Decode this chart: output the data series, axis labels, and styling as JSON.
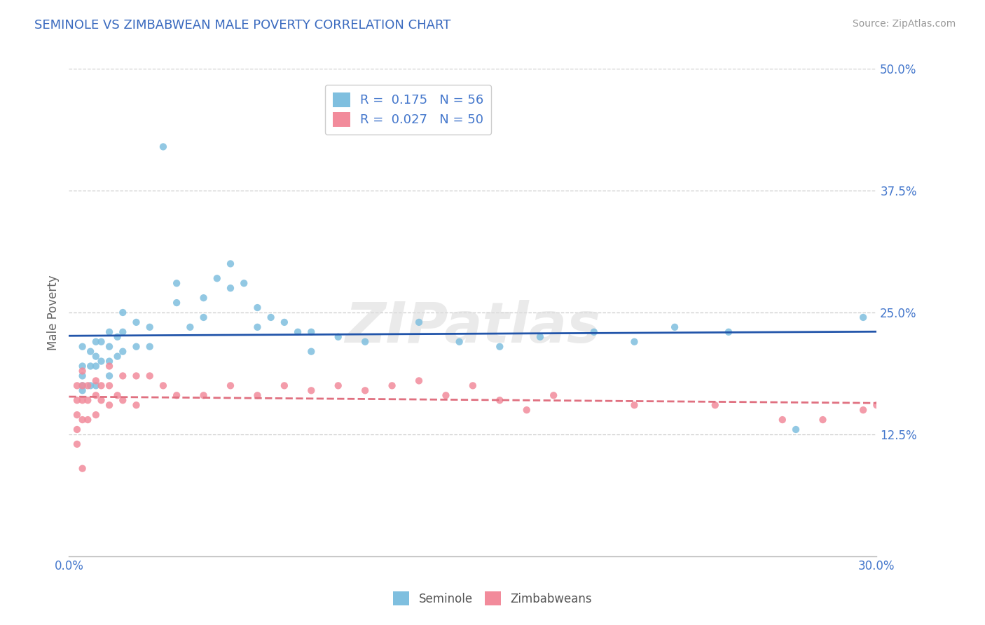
{
  "title": "SEMINOLE VS ZIMBABWEAN MALE POVERTY CORRELATION CHART",
  "source": "Source: ZipAtlas.com",
  "xlim": [
    0.0,
    0.3
  ],
  "ylim": [
    0.0,
    0.5
  ],
  "ytick_positions": [
    0.125,
    0.25,
    0.375,
    0.5
  ],
  "xtick_positions": [
    0.0,
    0.3
  ],
  "watermark": "ZIPatlas",
  "legend_entry_1": "R =  0.175   N = 56",
  "legend_entry_2": "R =  0.027   N = 50",
  "seminole_color": "#7fbfdf",
  "zimbabwe_color": "#f28b9b",
  "trend_seminole_color": "#2255aa",
  "trend_zimbabwe_color": "#e07080",
  "background_color": "#ffffff",
  "grid_color": "#cccccc",
  "title_color": "#3a6abf",
  "axis_tick_color": "#4477cc",
  "ylabel": "Male Poverty",
  "seminole_label": "Seminole",
  "zimbabwe_label": "Zimbabweans",
  "seminole_scatter_x": [
    0.005,
    0.005,
    0.005,
    0.005,
    0.005,
    0.008,
    0.008,
    0.008,
    0.01,
    0.01,
    0.01,
    0.01,
    0.012,
    0.012,
    0.015,
    0.015,
    0.015,
    0.015,
    0.018,
    0.018,
    0.02,
    0.02,
    0.02,
    0.025,
    0.025,
    0.03,
    0.03,
    0.035,
    0.04,
    0.04,
    0.045,
    0.05,
    0.05,
    0.055,
    0.06,
    0.06,
    0.065,
    0.07,
    0.07,
    0.075,
    0.08,
    0.085,
    0.09,
    0.09,
    0.1,
    0.11,
    0.13,
    0.145,
    0.16,
    0.175,
    0.195,
    0.21,
    0.225,
    0.245,
    0.27,
    0.295
  ],
  "seminole_scatter_y": [
    0.195,
    0.215,
    0.185,
    0.175,
    0.17,
    0.21,
    0.195,
    0.175,
    0.22,
    0.205,
    0.195,
    0.175,
    0.22,
    0.2,
    0.23,
    0.215,
    0.2,
    0.185,
    0.225,
    0.205,
    0.25,
    0.23,
    0.21,
    0.24,
    0.215,
    0.235,
    0.215,
    0.42,
    0.28,
    0.26,
    0.235,
    0.265,
    0.245,
    0.285,
    0.3,
    0.275,
    0.28,
    0.255,
    0.235,
    0.245,
    0.24,
    0.23,
    0.23,
    0.21,
    0.225,
    0.22,
    0.24,
    0.22,
    0.215,
    0.225,
    0.23,
    0.22,
    0.235,
    0.23,
    0.13,
    0.245
  ],
  "zimbabwe_scatter_x": [
    0.003,
    0.003,
    0.003,
    0.003,
    0.003,
    0.005,
    0.005,
    0.005,
    0.005,
    0.005,
    0.007,
    0.007,
    0.007,
    0.01,
    0.01,
    0.01,
    0.012,
    0.012,
    0.015,
    0.015,
    0.015,
    0.018,
    0.02,
    0.02,
    0.025,
    0.025,
    0.03,
    0.035,
    0.04,
    0.05,
    0.06,
    0.07,
    0.08,
    0.09,
    0.1,
    0.11,
    0.12,
    0.13,
    0.14,
    0.15,
    0.16,
    0.17,
    0.18,
    0.21,
    0.24,
    0.265,
    0.28,
    0.295,
    0.3,
    0.31
  ],
  "zimbabwe_scatter_y": [
    0.175,
    0.16,
    0.145,
    0.13,
    0.115,
    0.19,
    0.175,
    0.16,
    0.14,
    0.09,
    0.175,
    0.16,
    0.14,
    0.18,
    0.165,
    0.145,
    0.175,
    0.16,
    0.195,
    0.175,
    0.155,
    0.165,
    0.185,
    0.16,
    0.185,
    0.155,
    0.185,
    0.175,
    0.165,
    0.165,
    0.175,
    0.165,
    0.175,
    0.17,
    0.175,
    0.17,
    0.175,
    0.18,
    0.165,
    0.175,
    0.16,
    0.15,
    0.165,
    0.155,
    0.155,
    0.14,
    0.14,
    0.15,
    0.155,
    0.16
  ]
}
